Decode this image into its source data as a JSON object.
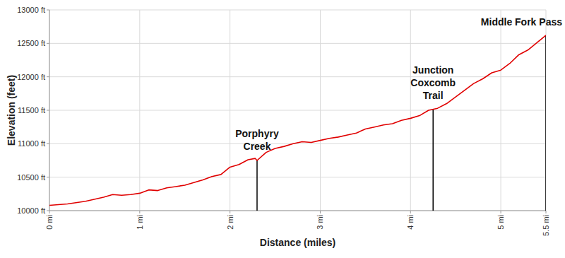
{
  "chart_data": {
    "type": "line",
    "x_label": "Distance (miles)",
    "y_label": "Elevation (feet)",
    "xlim": [
      0,
      5.5
    ],
    "ylim": [
      10000,
      13000
    ],
    "xticks": [
      {
        "value": 0,
        "label": "0 mi"
      },
      {
        "value": 1,
        "label": "1 mi"
      },
      {
        "value": 2,
        "label": "2 mi"
      },
      {
        "value": 3,
        "label": "3 mi"
      },
      {
        "value": 4,
        "label": "4 mi"
      },
      {
        "value": 5,
        "label": "5 mi"
      },
      {
        "value": 5.5,
        "label": "5.5 mi"
      }
    ],
    "yticks": [
      {
        "value": 10000,
        "label": "10000 ft"
      },
      {
        "value": 10500,
        "label": "10500 ft"
      },
      {
        "value": 11000,
        "label": "11000 ft"
      },
      {
        "value": 11500,
        "label": "11500 ft"
      },
      {
        "value": 12000,
        "label": "12000 ft"
      },
      {
        "value": 12500,
        "label": "12500 ft"
      },
      {
        "value": 13000,
        "label": "13000 ft"
      }
    ],
    "grid": true,
    "series": [
      {
        "color": "#e00000",
        "x": [
          0,
          0.2,
          0.4,
          0.6,
          0.7,
          0.8,
          0.9,
          1.0,
          1.1,
          1.2,
          1.3,
          1.4,
          1.5,
          1.6,
          1.7,
          1.8,
          1.9,
          2.0,
          2.1,
          2.2,
          2.28,
          2.3,
          2.4,
          2.5,
          2.6,
          2.7,
          2.8,
          2.9,
          3.0,
          3.1,
          3.2,
          3.3,
          3.4,
          3.5,
          3.6,
          3.7,
          3.8,
          3.9,
          4.0,
          4.1,
          4.2,
          4.3,
          4.4,
          4.5,
          4.6,
          4.7,
          4.8,
          4.9,
          5.0,
          5.1,
          5.2,
          5.3,
          5.4,
          5.5
        ],
        "values": [
          10080,
          10100,
          10140,
          10200,
          10240,
          10230,
          10240,
          10260,
          10310,
          10300,
          10340,
          10360,
          10380,
          10420,
          10460,
          10510,
          10540,
          10650,
          10690,
          10760,
          10780,
          10750,
          10870,
          10930,
          10960,
          11000,
          11030,
          11020,
          11050,
          11080,
          11100,
          11130,
          11160,
          11220,
          11250,
          11280,
          11300,
          11350,
          11380,
          11420,
          11500,
          11530,
          11600,
          11700,
          11800,
          11900,
          11970,
          12060,
          12100,
          12200,
          12330,
          12400,
          12510,
          12620
        ]
      }
    ],
    "annotations": [
      {
        "label": [
          "Porphyry",
          "Creek"
        ],
        "x": 2.3,
        "y": 10760
      },
      {
        "label": [
          "Junction",
          "Coxcomb",
          "Trail"
        ],
        "x": 4.25,
        "y": 11520
      },
      {
        "label": [
          "Middle Fork Pass"
        ],
        "x": 5.5,
        "y": 12620
      }
    ]
  }
}
